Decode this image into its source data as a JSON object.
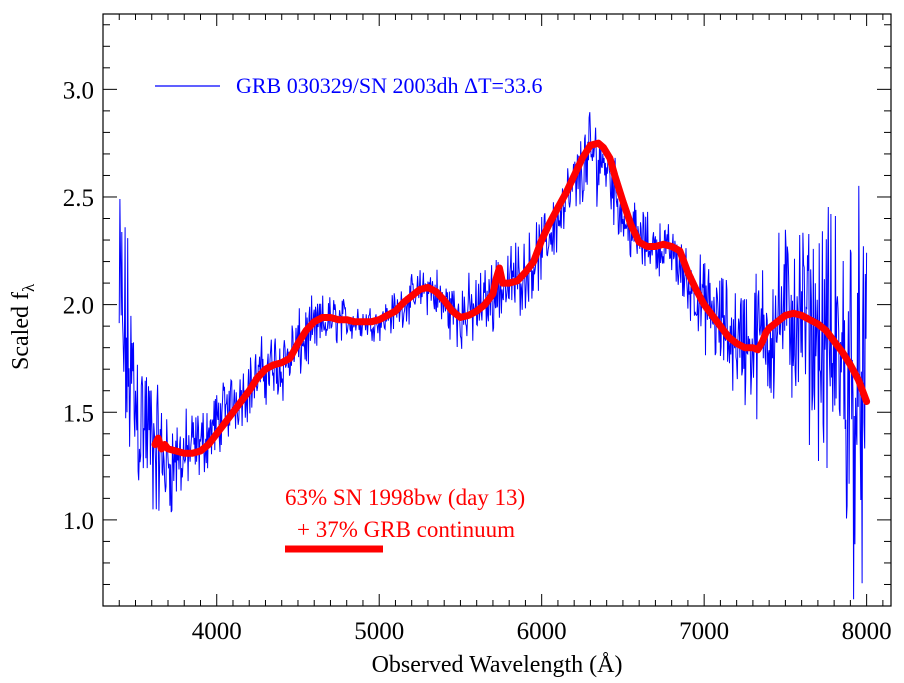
{
  "chart_data": {
    "type": "line",
    "xlabel": "Observed Wavelength (Å)",
    "ylabel_main": "Scaled f",
    "ylabel_sub": "λ",
    "xlim": [
      3300,
      8150
    ],
    "ylim": [
      0.6,
      3.35
    ],
    "x_ticks": [
      4000,
      5000,
      6000,
      7000,
      8000
    ],
    "x_tick_labels": [
      "4000",
      "5000",
      "6000",
      "7000",
      "8000"
    ],
    "y_ticks": [
      1.0,
      1.5,
      2.0,
      2.5,
      3.0
    ],
    "y_tick_labels": [
      "1.0",
      "1.5",
      "2.0",
      "2.5",
      "3.0"
    ],
    "grid": false,
    "legend_position": "top-left",
    "colors": {
      "observed": "#0000ff",
      "model": "#ff0000",
      "axes": "#000000"
    },
    "series": [
      {
        "name": "GRB 030329/SN 2003dh ΔT=33.6",
        "style": "thin-noisy",
        "x": [
          3400,
          3500,
          3600,
          3700,
          3800,
          3900,
          4000,
          4100,
          4200,
          4300,
          4400,
          4500,
          4600,
          4700,
          4800,
          4900,
          5000,
          5100,
          5200,
          5300,
          5400,
          5500,
          5600,
          5700,
          5800,
          5900,
          6000,
          6100,
          6200,
          6300,
          6400,
          6500,
          6600,
          6700,
          6800,
          6900,
          7000,
          7100,
          7200,
          7300,
          7400,
          7500,
          7600,
          7700,
          7800,
          7900,
          8000
        ],
        "y": [
          1.95,
          1.55,
          1.35,
          1.25,
          1.3,
          1.35,
          1.45,
          1.55,
          1.62,
          1.7,
          1.72,
          1.8,
          1.88,
          1.93,
          1.93,
          1.92,
          1.92,
          1.97,
          2.03,
          2.08,
          2.0,
          1.95,
          1.98,
          2.05,
          2.1,
          2.15,
          2.25,
          2.4,
          2.55,
          2.7,
          2.65,
          2.4,
          2.3,
          2.27,
          2.25,
          2.1,
          2.0,
          1.9,
          1.85,
          1.8,
          1.9,
          1.97,
          1.92,
          1.85,
          1.75,
          1.65,
          1.55
        ],
        "noise_amplitude": [
          0.9,
          0.55,
          0.45,
          0.3,
          0.25,
          0.2,
          0.2,
          0.18,
          0.18,
          0.2,
          0.22,
          0.2,
          0.18,
          0.15,
          0.12,
          0.1,
          0.1,
          0.12,
          0.12,
          0.15,
          0.18,
          0.2,
          0.2,
          0.2,
          0.22,
          0.2,
          0.2,
          0.2,
          0.2,
          0.25,
          0.2,
          0.18,
          0.18,
          0.15,
          0.15,
          0.2,
          0.25,
          0.3,
          0.35,
          0.4,
          0.45,
          0.5,
          0.55,
          0.6,
          0.9,
          1.1,
          1.0
        ]
      },
      {
        "name": "63% SN 1998bw (day 13)\n+ 37% GRB continuum",
        "style": "thick-smooth",
        "x": [
          3620,
          3640,
          3660,
          3680,
          3700,
          3750,
          3800,
          3850,
          3900,
          3950,
          4000,
          4050,
          4100,
          4150,
          4200,
          4250,
          4300,
          4350,
          4400,
          4450,
          4500,
          4550,
          4600,
          4650,
          4700,
          4750,
          4800,
          4850,
          4900,
          4950,
          5000,
          5050,
          5100,
          5150,
          5200,
          5250,
          5300,
          5350,
          5400,
          5450,
          5500,
          5550,
          5600,
          5650,
          5700,
          5720,
          5740,
          5760,
          5800,
          5850,
          5900,
          5950,
          6000,
          6050,
          6100,
          6150,
          6200,
          6250,
          6300,
          6350,
          6380,
          6420,
          6450,
          6500,
          6550,
          6600,
          6650,
          6700,
          6750,
          6800,
          6850,
          6900,
          6950,
          7000,
          7050,
          7100,
          7150,
          7200,
          7250,
          7300,
          7330,
          7360,
          7380,
          7400,
          7450,
          7500,
          7550,
          7600,
          7650,
          7700,
          7750,
          7800,
          7850,
          7900,
          7950,
          8000
        ],
        "y": [
          1.35,
          1.38,
          1.33,
          1.35,
          1.33,
          1.32,
          1.31,
          1.31,
          1.32,
          1.35,
          1.4,
          1.45,
          1.5,
          1.55,
          1.6,
          1.66,
          1.7,
          1.72,
          1.73,
          1.75,
          1.82,
          1.88,
          1.92,
          1.94,
          1.94,
          1.93,
          1.93,
          1.92,
          1.92,
          1.92,
          1.93,
          1.95,
          1.97,
          2.01,
          2.04,
          2.07,
          2.08,
          2.06,
          2.02,
          1.97,
          1.94,
          1.95,
          1.97,
          2.0,
          2.05,
          2.12,
          2.17,
          2.1,
          2.1,
          2.11,
          2.15,
          2.2,
          2.3,
          2.38,
          2.45,
          2.52,
          2.6,
          2.68,
          2.74,
          2.75,
          2.73,
          2.68,
          2.6,
          2.48,
          2.37,
          2.29,
          2.27,
          2.27,
          2.28,
          2.27,
          2.25,
          2.15,
          2.07,
          2.0,
          1.95,
          1.9,
          1.85,
          1.82,
          1.8,
          1.8,
          1.79,
          1.83,
          1.87,
          1.89,
          1.92,
          1.95,
          1.96,
          1.95,
          1.93,
          1.91,
          1.88,
          1.83,
          1.78,
          1.72,
          1.65,
          1.55
        ]
      }
    ],
    "legend": {
      "observed_label": "GRB 030329/SN 2003dh ΔT=33.6",
      "model_label_line1": "63% SN 1998bw (day 13)",
      "model_label_line2": "+ 37% GRB continuum"
    }
  }
}
